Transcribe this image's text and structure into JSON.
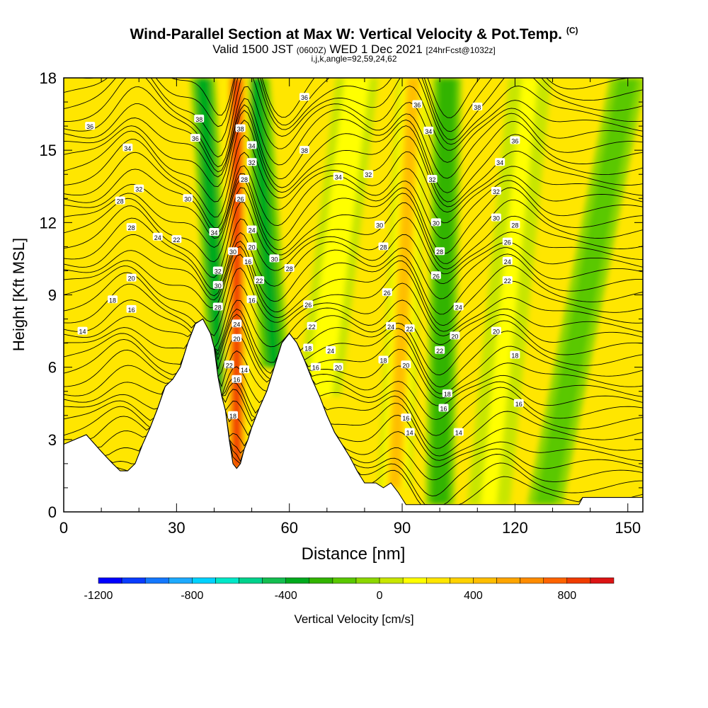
{
  "header": {
    "title": "Wind-Parallel Section at Max W: Vertical Velocity & Pot.Temp.",
    "copyright": "(C)",
    "valid_prefix": "Valid 1500 JST",
    "valid_utc": "(0600Z)",
    "valid_date": "WED 1 Dec 2021",
    "forecast": "[24hrFcst@1032z]",
    "indices": "i,j,k,angle=92,59,24,62"
  },
  "chart_data": {
    "type": "heatmap",
    "xlabel": "Distance [nm]",
    "ylabel": "Height [Kft MSL]",
    "xlim": [
      0,
      154
    ],
    "ylim": [
      0,
      18
    ],
    "x_ticks": [
      0,
      30,
      60,
      90,
      120,
      150
    ],
    "y_ticks": [
      0,
      3,
      6,
      9,
      12,
      15,
      18
    ],
    "colorbar": {
      "label": "Vertical Velocity [cm/s]",
      "min": -1200,
      "max": 1000,
      "step": 100,
      "tick_values": [
        -1200,
        -800,
        -400,
        0,
        400,
        800
      ],
      "colors": [
        "#0000ff",
        "#0a3cff",
        "#1478ff",
        "#1eaaff",
        "#00d2ff",
        "#00e8c8",
        "#00d28c",
        "#14be50",
        "#00aa1e",
        "#32b400",
        "#5ac800",
        "#8cd700",
        "#c8e600",
        "#ffff00",
        "#ffe600",
        "#ffd200",
        "#ffbe00",
        "#ffa500",
        "#ff8c00",
        "#ff6400",
        "#f03c00",
        "#dc1414",
        "#c80a3c",
        "#b4146e",
        "#8c1478",
        "#640a8c"
      ]
    },
    "terrain_profile": [
      [
        0,
        2.8
      ],
      [
        3,
        3.0
      ],
      [
        6,
        3.2
      ],
      [
        10,
        2.5
      ],
      [
        13,
        2.0
      ],
      [
        15,
        1.7
      ],
      [
        17,
        1.7
      ],
      [
        19,
        2.0
      ],
      [
        21,
        2.8
      ],
      [
        23,
        3.5
      ],
      [
        25,
        4.3
      ],
      [
        27,
        5.2
      ],
      [
        29,
        5.5
      ],
      [
        31,
        6.0
      ],
      [
        33,
        7.0
      ],
      [
        35,
        7.8
      ],
      [
        37,
        8.0
      ],
      [
        39,
        7.4
      ],
      [
        40,
        6.8
      ],
      [
        41,
        5.6
      ],
      [
        42,
        4.8
      ],
      [
        43,
        4.2
      ],
      [
        44,
        3.0
      ],
      [
        45,
        2.0
      ],
      [
        46,
        1.8
      ],
      [
        47,
        2.0
      ],
      [
        48,
        2.6
      ],
      [
        49,
        3.0
      ],
      [
        50,
        3.5
      ],
      [
        52,
        4.3
      ],
      [
        54,
        5.0
      ],
      [
        56,
        6.0
      ],
      [
        58,
        7.0
      ],
      [
        60,
        7.4
      ],
      [
        62,
        7.0
      ],
      [
        64,
        6.3
      ],
      [
        66,
        5.5
      ],
      [
        68,
        4.8
      ],
      [
        70,
        4.0
      ],
      [
        72,
        3.3
      ],
      [
        74,
        2.8
      ],
      [
        76,
        2.3
      ],
      [
        78,
        1.7
      ],
      [
        80,
        1.2
      ],
      [
        83,
        1.2
      ],
      [
        85,
        1.0
      ],
      [
        87,
        1.2
      ],
      [
        89,
        0.8
      ],
      [
        91,
        0.3
      ],
      [
        105,
        0.3
      ],
      [
        137,
        0.3
      ],
      [
        138,
        0.6
      ],
      [
        154,
        0.6
      ]
    ],
    "updraft_bands": [
      {
        "x_base": 46,
        "x_top": 46,
        "width": 3.5,
        "value": 800
      },
      {
        "x_base": 88,
        "x_top": 93,
        "width": 4.5,
        "value": 400
      },
      {
        "x_base": 68,
        "x_top": 78,
        "width": 6,
        "value": 150
      },
      {
        "x_base": 113,
        "x_top": 124,
        "width": 6,
        "value": 100
      }
    ],
    "downdraft_bands": [
      {
        "x_base": 42,
        "x_top": 37,
        "width": 3.5,
        "value": -400
      },
      {
        "x_base": 56,
        "x_top": 51,
        "width": 4,
        "value": -350
      },
      {
        "x_base": 100,
        "x_top": 102,
        "width": 4,
        "value": -300
      },
      {
        "x_base": 128,
        "x_top": 150,
        "width": 5,
        "value": -150
      }
    ],
    "contour_labels": [
      {
        "x": 7,
        "y": 16.0,
        "text": "36"
      },
      {
        "x": 17,
        "y": 15.1,
        "text": "34"
      },
      {
        "x": 20,
        "y": 13.4,
        "text": "32"
      },
      {
        "x": 15,
        "y": 12.9,
        "text": "28"
      },
      {
        "x": 18,
        "y": 11.8,
        "text": "28"
      },
      {
        "x": 25,
        "y": 11.4,
        "text": "24"
      },
      {
        "x": 30,
        "y": 11.3,
        "text": "22"
      },
      {
        "x": 18,
        "y": 9.7,
        "text": "20"
      },
      {
        "x": 13,
        "y": 8.8,
        "text": "18"
      },
      {
        "x": 18,
        "y": 8.4,
        "text": "16"
      },
      {
        "x": 5,
        "y": 7.5,
        "text": "14"
      },
      {
        "x": 36,
        "y": 16.3,
        "text": "38"
      },
      {
        "x": 35,
        "y": 15.5,
        "text": "36"
      },
      {
        "x": 33,
        "y": 13.0,
        "text": "30"
      },
      {
        "x": 40,
        "y": 11.6,
        "text": "34"
      },
      {
        "x": 41,
        "y": 10.0,
        "text": "32"
      },
      {
        "x": 41,
        "y": 9.4,
        "text": "30"
      },
      {
        "x": 41,
        "y": 8.5,
        "text": "28"
      },
      {
        "x": 46,
        "y": 7.8,
        "text": "24"
      },
      {
        "x": 46,
        "y": 7.2,
        "text": "20"
      },
      {
        "x": 44,
        "y": 6.1,
        "text": "22"
      },
      {
        "x": 46,
        "y": 5.5,
        "text": "16"
      },
      {
        "x": 48,
        "y": 5.9,
        "text": "14"
      },
      {
        "x": 45,
        "y": 4.0,
        "text": "18"
      },
      {
        "x": 47,
        "y": 15.9,
        "text": "38"
      },
      {
        "x": 50,
        "y": 15.2,
        "text": "34"
      },
      {
        "x": 50,
        "y": 14.5,
        "text": "32"
      },
      {
        "x": 48,
        "y": 13.8,
        "text": "28"
      },
      {
        "x": 47,
        "y": 13.0,
        "text": "26"
      },
      {
        "x": 50,
        "y": 11.7,
        "text": "24"
      },
      {
        "x": 45,
        "y": 10.8,
        "text": "30"
      },
      {
        "x": 50,
        "y": 11.0,
        "text": "20"
      },
      {
        "x": 49,
        "y": 10.4,
        "text": "16"
      },
      {
        "x": 52,
        "y": 9.6,
        "text": "22"
      },
      {
        "x": 50,
        "y": 8.8,
        "text": "16"
      },
      {
        "x": 56,
        "y": 10.5,
        "text": "30"
      },
      {
        "x": 60,
        "y": 10.1,
        "text": "28"
      },
      {
        "x": 65,
        "y": 8.6,
        "text": "26"
      },
      {
        "x": 66,
        "y": 7.7,
        "text": "22"
      },
      {
        "x": 65,
        "y": 6.8,
        "text": "18"
      },
      {
        "x": 67,
        "y": 6.0,
        "text": "16"
      },
      {
        "x": 71,
        "y": 6.7,
        "text": "24"
      },
      {
        "x": 73,
        "y": 6.0,
        "text": "20"
      },
      {
        "x": 64,
        "y": 17.2,
        "text": "36"
      },
      {
        "x": 64,
        "y": 15.0,
        "text": "38"
      },
      {
        "x": 73,
        "y": 13.9,
        "text": "34"
      },
      {
        "x": 81,
        "y": 14.0,
        "text": "32"
      },
      {
        "x": 84,
        "y": 11.9,
        "text": "30"
      },
      {
        "x": 85,
        "y": 11.0,
        "text": "28"
      },
      {
        "x": 86,
        "y": 9.1,
        "text": "26"
      },
      {
        "x": 87,
        "y": 7.7,
        "text": "24"
      },
      {
        "x": 92,
        "y": 7.6,
        "text": "22"
      },
      {
        "x": 85,
        "y": 6.3,
        "text": "18"
      },
      {
        "x": 91,
        "y": 6.1,
        "text": "20"
      },
      {
        "x": 91,
        "y": 3.9,
        "text": "16"
      },
      {
        "x": 92,
        "y": 3.3,
        "text": "14"
      },
      {
        "x": 94,
        "y": 16.9,
        "text": "36"
      },
      {
        "x": 97,
        "y": 15.8,
        "text": "34"
      },
      {
        "x": 98,
        "y": 13.8,
        "text": "32"
      },
      {
        "x": 99,
        "y": 12.0,
        "text": "30"
      },
      {
        "x": 100,
        "y": 10.8,
        "text": "28"
      },
      {
        "x": 99,
        "y": 9.8,
        "text": "26"
      },
      {
        "x": 105,
        "y": 8.5,
        "text": "24"
      },
      {
        "x": 104,
        "y": 7.3,
        "text": "20"
      },
      {
        "x": 100,
        "y": 6.7,
        "text": "22"
      },
      {
        "x": 102,
        "y": 4.9,
        "text": "18"
      },
      {
        "x": 101,
        "y": 4.3,
        "text": "16"
      },
      {
        "x": 105,
        "y": 3.3,
        "text": "14"
      },
      {
        "x": 110,
        "y": 16.8,
        "text": "38"
      },
      {
        "x": 120,
        "y": 15.4,
        "text": "36"
      },
      {
        "x": 116,
        "y": 14.5,
        "text": "34"
      },
      {
        "x": 115,
        "y": 13.3,
        "text": "32"
      },
      {
        "x": 115,
        "y": 12.2,
        "text": "30"
      },
      {
        "x": 120,
        "y": 11.9,
        "text": "28"
      },
      {
        "x": 118,
        "y": 11.2,
        "text": "26"
      },
      {
        "x": 118,
        "y": 10.4,
        "text": "24"
      },
      {
        "x": 118,
        "y": 9.6,
        "text": "22"
      },
      {
        "x": 115,
        "y": 7.5,
        "text": "20"
      },
      {
        "x": 120,
        "y": 6.5,
        "text": "18"
      },
      {
        "x": 121,
        "y": 4.5,
        "text": "16"
      }
    ]
  }
}
